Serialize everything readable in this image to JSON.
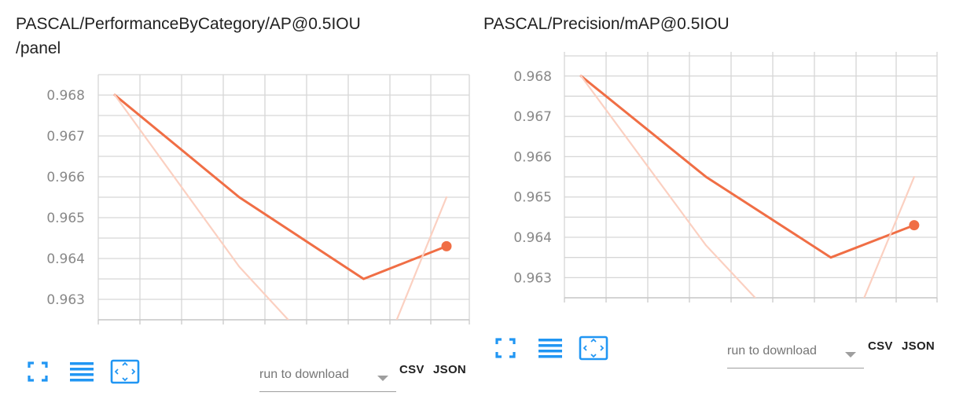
{
  "panels": [
    {
      "title_line1": "PASCAL/PerformanceByCategory/AP@0.5IOU",
      "title_line2": "/panel",
      "download_select": "run to download",
      "csv_label": "CSV",
      "json_label": "JSON"
    },
    {
      "title_line1": "PASCAL/Precision/mAP@0.5IOU",
      "title_line2": "",
      "download_select": "run to download",
      "csv_label": "CSV",
      "json_label": "JSON"
    }
  ],
  "icons": [
    "fit-to-screen-icon",
    "list-icon",
    "zoom-domain-icon"
  ],
  "colors": {
    "smoothed_line": "#f06e45",
    "raw_line": "#fbd0c1",
    "grid": "#d6d6d6",
    "accent_icon": "#2196f3"
  },
  "chart_data": [
    {
      "type": "line",
      "title": "PASCAL/PerformanceByCategory/AP@0.5IOU/panel",
      "xlabel": "",
      "ylabel": "",
      "y_ticks": [
        "0.968",
        "0.967",
        "0.966",
        "0.965",
        "0.964",
        "0.963"
      ],
      "ylim": [
        0.9625,
        0.9685
      ],
      "xlim": [
        -0.4,
        8.55
      ],
      "grid": true,
      "series": [
        {
          "role": "smoothed",
          "x": [
            0,
            3,
            6,
            8
          ],
          "y": [
            0.968,
            0.9655,
            0.9635,
            0.9643
          ]
        },
        {
          "role": "raw",
          "x": [
            0,
            3,
            6,
            8
          ],
          "y": [
            0.968,
            0.9638,
            0.9605,
            0.9655
          ]
        }
      ]
    },
    {
      "type": "line",
      "title": "PASCAL/Precision/mAP@0.5IOU",
      "xlabel": "",
      "ylabel": "",
      "y_ticks": [
        "0.968",
        "0.967",
        "0.966",
        "0.965",
        "0.964",
        "0.963"
      ],
      "ylim": [
        0.9625,
        0.9686
      ],
      "xlim": [
        -0.4,
        8.55
      ],
      "grid": true,
      "series": [
        {
          "role": "smoothed",
          "x": [
            0,
            3,
            6,
            8
          ],
          "y": [
            0.968,
            0.9655,
            0.9635,
            0.9643
          ]
        },
        {
          "role": "raw",
          "x": [
            0,
            3,
            6,
            8
          ],
          "y": [
            0.968,
            0.9638,
            0.9605,
            0.9655
          ]
        }
      ]
    }
  ]
}
